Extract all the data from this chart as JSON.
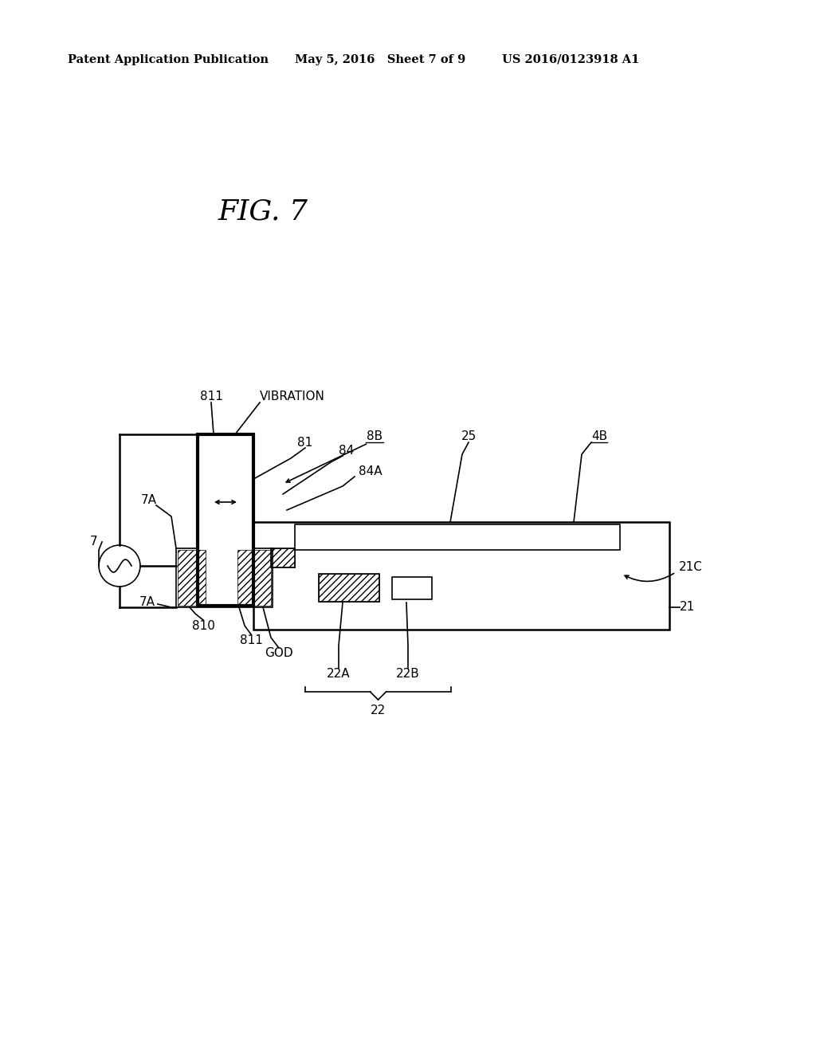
{
  "bg_color": "#ffffff",
  "header_left": "Patent Application Publication",
  "header_mid": "May 5, 2016   Sheet 7 of 9",
  "header_right": "US 2016/0123918 A1",
  "fig_title": "FIG. 7",
  "labels": {
    "811_top": "811",
    "VIBRATION": "VIBRATION",
    "81": "81",
    "84": "84",
    "8B": "8B",
    "84A": "84A",
    "25": "25",
    "4B": "4B",
    "7A_top": "7A",
    "7": "7",
    "7A_bot": "7A",
    "810": "810",
    "811_bot": "811",
    "GOD": "GOD",
    "22A": "22A",
    "22B": "22B",
    "22": "22",
    "21C": "21C",
    "21": "21"
  }
}
